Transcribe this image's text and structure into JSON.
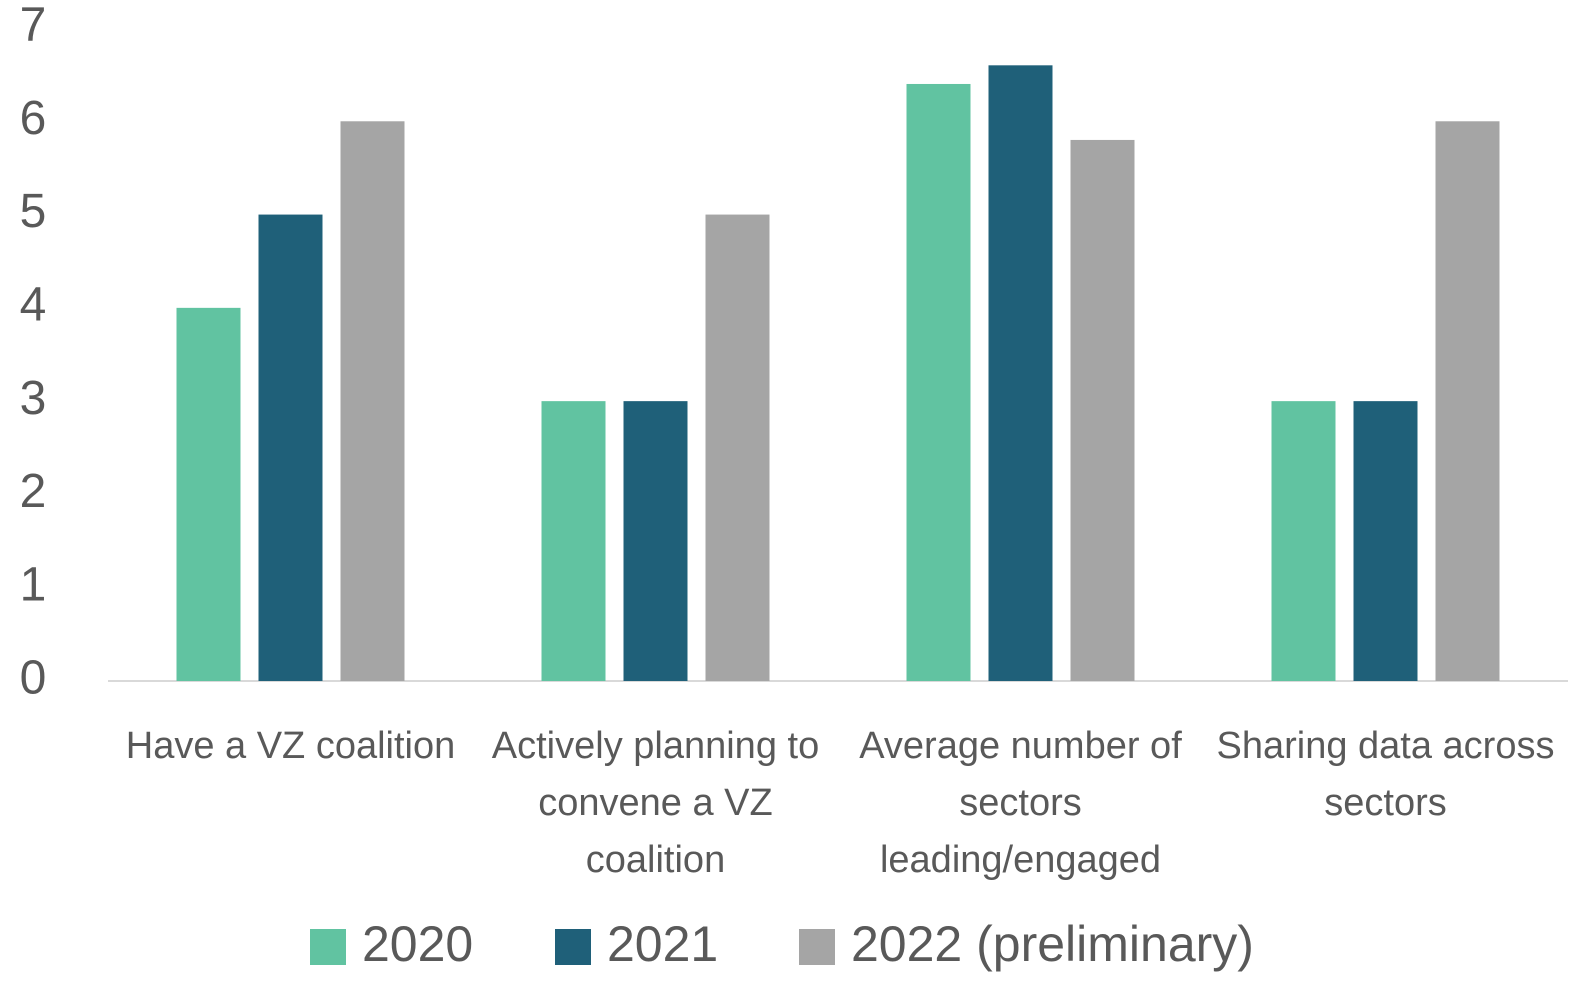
{
  "chart_data": {
    "type": "bar",
    "categories": [
      "Have a VZ coalition",
      "Actively planning to convene a VZ coalition",
      "Average number of sectors leading/engaged",
      "Sharing data across sectors"
    ],
    "series": [
      {
        "name": "2020",
        "color": "#61c3a1",
        "values": [
          4,
          3,
          6.4,
          3
        ]
      },
      {
        "name": "2021",
        "color": "#1f6079",
        "values": [
          5,
          3,
          6.6,
          3
        ]
      },
      {
        "name": "2022 (preliminary)",
        "color": "#a5a5a5",
        "values": [
          6,
          5,
          5.8,
          6
        ]
      }
    ],
    "ylim": [
      0,
      7
    ],
    "yticks": [
      0,
      1,
      2,
      3,
      4,
      5,
      6,
      7
    ],
    "grid": false,
    "legend": "bottom"
  }
}
